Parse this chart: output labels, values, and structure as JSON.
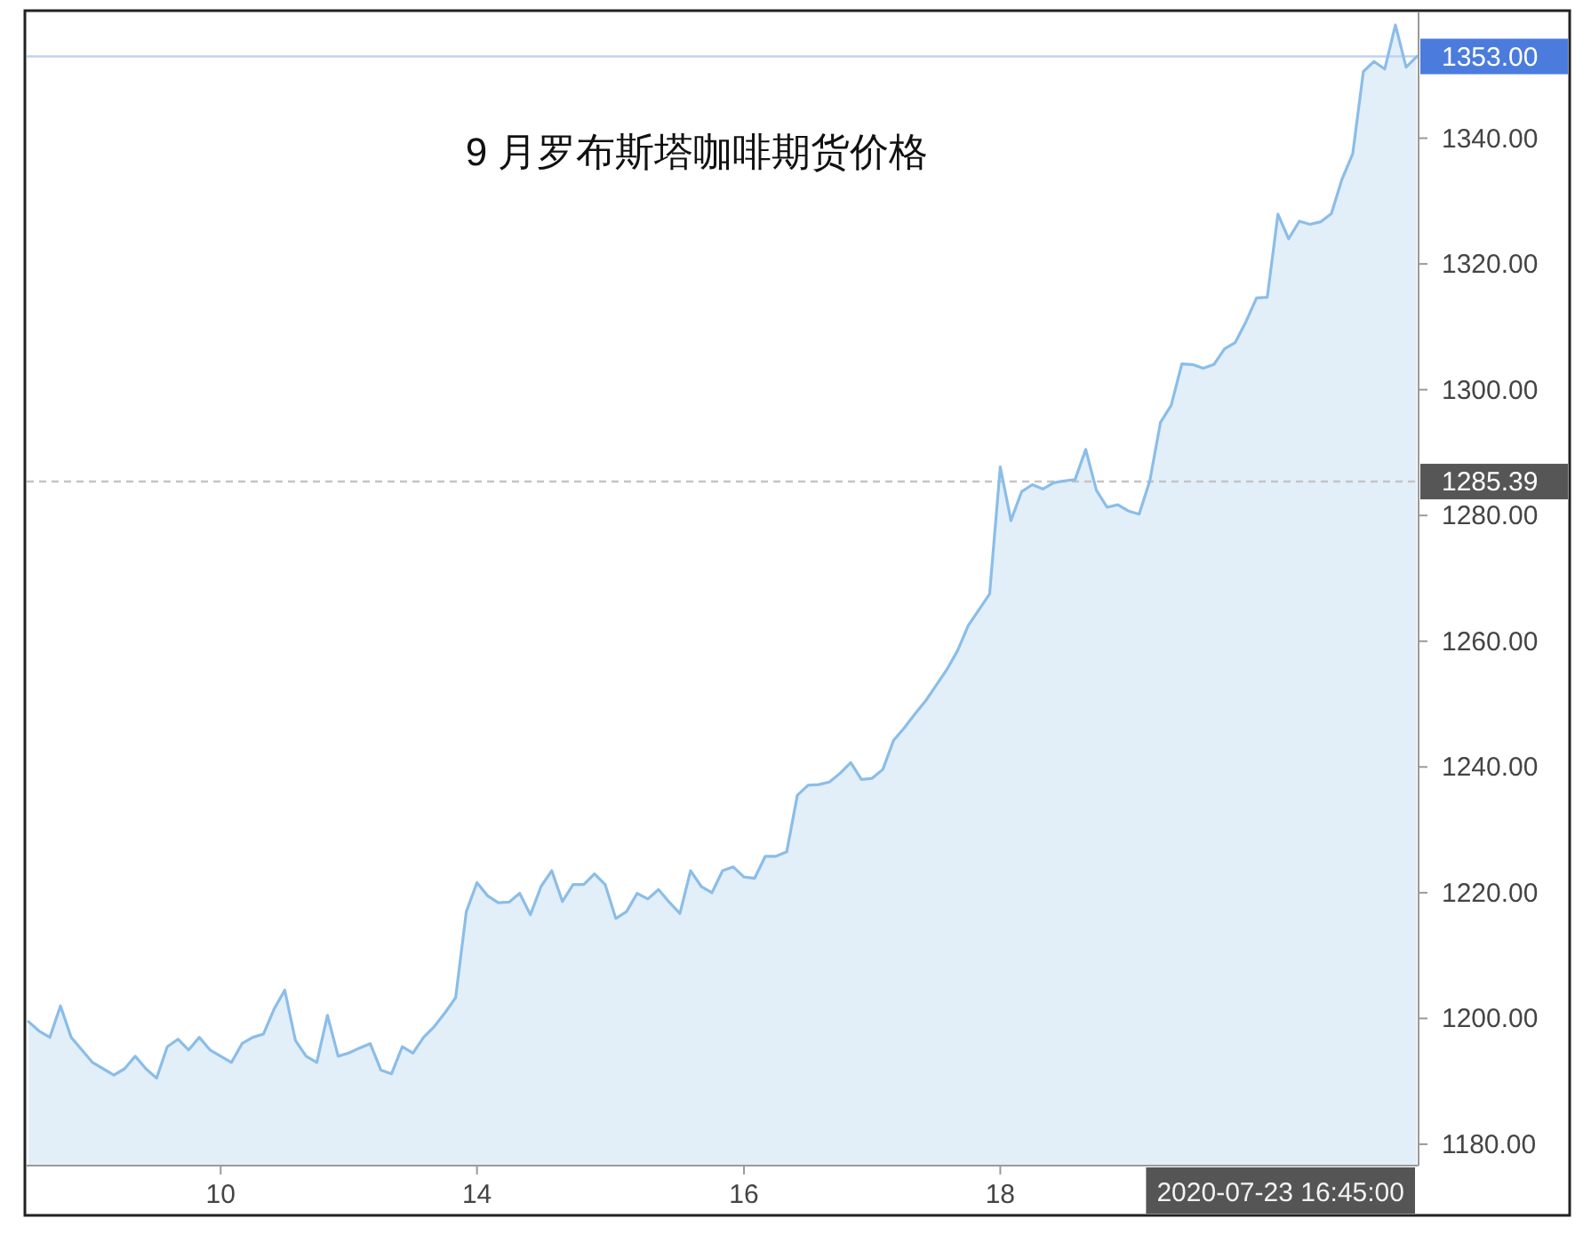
{
  "chart_data": {
    "type": "area",
    "title": "9 月罗布斯塔咖啡期货价格",
    "categories": [
      null,
      null,
      null,
      null,
      null,
      null,
      null,
      null,
      null,
      null,
      null,
      null,
      null,
      null,
      null,
      null,
      null,
      null,
      "10",
      null,
      null,
      null,
      null,
      null,
      null,
      null,
      null,
      null,
      null,
      null,
      null,
      null,
      null,
      null,
      null,
      null,
      null,
      null,
      null,
      null,
      null,
      null,
      "14",
      null,
      null,
      null,
      null,
      null,
      null,
      null,
      null,
      null,
      null,
      null,
      null,
      null,
      null,
      null,
      null,
      null,
      null,
      null,
      null,
      null,
      null,
      null,
      null,
      "16",
      null,
      null,
      null,
      null,
      null,
      null,
      null,
      null,
      null,
      null,
      null,
      null,
      null,
      null,
      null,
      null,
      null,
      null,
      null,
      null,
      null,
      null,
      null,
      "18",
      null,
      null,
      null,
      null,
      null,
      null,
      null,
      null,
      null,
      null,
      null,
      null,
      null,
      null,
      null,
      null,
      null,
      null,
      null,
      null,
      null,
      null,
      null,
      null,
      null,
      null,
      null,
      null,
      null,
      null,
      null,
      null,
      null,
      null,
      null,
      null,
      null,
      null,
      null
    ],
    "values": [
      1199.5,
      1198,
      1197,
      1202,
      1197,
      1195,
      1193,
      1192,
      1191,
      1192,
      1194,
      1192,
      1190.5,
      1195.5,
      1196.7,
      1195,
      1197,
      1195,
      1194,
      1193,
      1196,
      1197,
      1197.5,
      1201.5,
      1204.5,
      1196.5,
      1194,
      1193,
      1200.5,
      1194,
      1194.5,
      1195.3,
      1196,
      1191.8,
      1191.2,
      1195.5,
      1194.5,
      1197,
      1198.7,
      1200.9,
      1203.3,
      1217,
      1221.6,
      1219.5,
      1218.4,
      1218.5,
      1219.9,
      1216.5,
      1221,
      1223.5,
      1218.6,
      1221.3,
      1221.3,
      1223,
      1221.3,
      1215.9,
      1217,
      1219.9,
      1219,
      1220.5,
      1218.5,
      1216.7,
      1223.5,
      1221,
      1220,
      1223.5,
      1224.1,
      1222.5,
      1222.3,
      1225.8,
      1225.8,
      1226.5,
      1235.5,
      1237.1,
      1237.2,
      1237.6,
      1239,
      1240.7,
      1238,
      1238.2,
      1239.6,
      1244.2,
      1246.2,
      1248.4,
      1250.5,
      1253,
      1255.5,
      1258.5,
      1262.5,
      1265,
      1267.5,
      1287.7,
      1279.2,
      1283.8,
      1284.9,
      1284.2,
      1285.2,
      1285.5,
      1285.7,
      1290.5,
      1284,
      1281.3,
      1281.7,
      1280.7,
      1280.2,
      1285.5,
      1294.8,
      1297.5,
      1304.1,
      1304,
      1303.4,
      1304,
      1306.5,
      1307.5,
      1310.8,
      1314.6,
      1314.7,
      1327.9,
      1324,
      1326.8,
      1326.3,
      1326.7,
      1328,
      1333.5,
      1337.5,
      1350.6,
      1352.2,
      1351,
      1358,
      1351.3,
      1353
    ],
    "color": "#8bbde8",
    "ylim": [
      1176.6,
      1360
    ],
    "yticks": [
      {
        "value": 1180,
        "label": "1180.00"
      },
      {
        "value": 1200,
        "label": "1200.00"
      },
      {
        "value": 1220,
        "label": "1220.00"
      },
      {
        "value": 1240,
        "label": "1240.00"
      },
      {
        "value": 1260,
        "label": "1260.00"
      },
      {
        "value": 1280,
        "label": "1280.00"
      },
      {
        "value": 1300,
        "label": "1300.00"
      },
      {
        "value": 1320,
        "label": "1320.00"
      },
      {
        "value": 1340,
        "label": "1340.00"
      }
    ],
    "ref_lines": [
      {
        "axis": "y",
        "value": 1353,
        "label": "1353.00",
        "color": "#c0d1f3",
        "line_style": "solid"
      },
      {
        "axis": "y",
        "value": 1285.39,
        "label": "1285.39",
        "color": "#c4c4c4",
        "line_style": "dashed"
      }
    ],
    "annotations": [
      "2020-07-23 16:45:00"
    ]
  }
}
